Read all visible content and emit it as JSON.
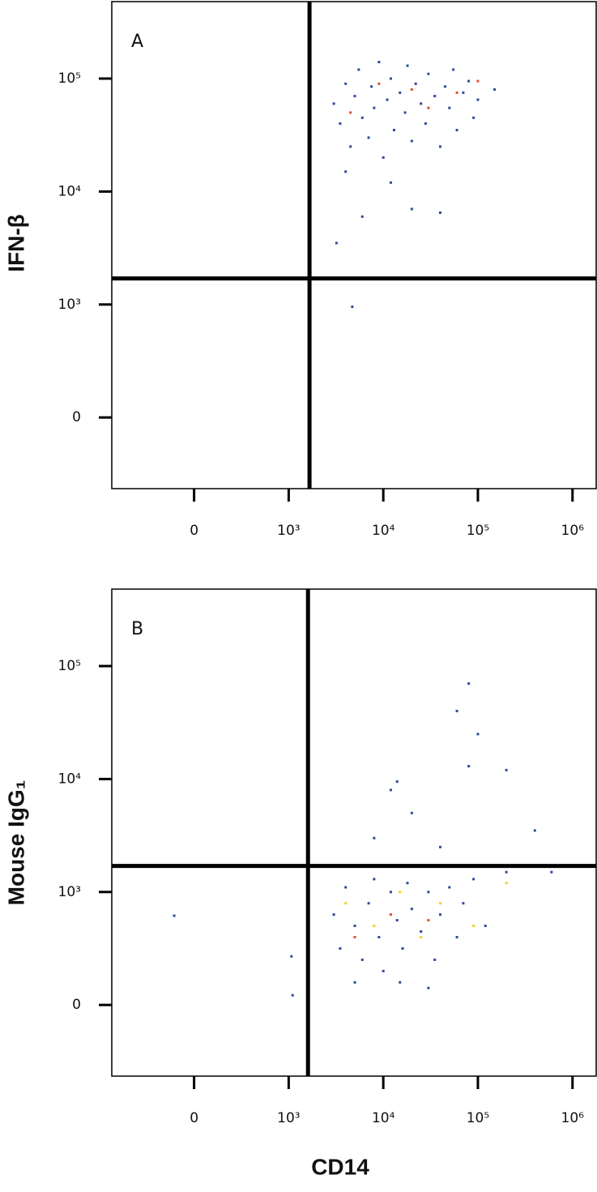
{
  "chart_data": [
    {
      "type": "scatter",
      "label": "A",
      "ylabel": "IFN-β",
      "xscale": "biexponential",
      "yscale": "biexponential",
      "xlim": [
        -870,
        1780000
      ],
      "ylim": [
        -630,
        480000
      ],
      "xticks": [
        0,
        {
          "value": 1000,
          "label": "10³"
        },
        {
          "value": 10000,
          "label": "10⁴"
        },
        {
          "value": 100000,
          "label": "10⁵"
        },
        {
          "value": 1000000,
          "label": "10⁶"
        }
      ],
      "yticks": [
        0,
        {
          "value": 1000,
          "label": "10³"
        },
        {
          "value": 10000,
          "label": "10⁴"
        },
        {
          "value": 100000,
          "label": "10⁵"
        }
      ],
      "gates": {
        "x": 1660,
        "y": 1700
      },
      "series": [
        {
          "color": "#2e4a9e",
          "x": [
            3000,
            3500,
            4000,
            4500,
            5000,
            5500,
            6000,
            7000,
            7500,
            8000,
            9000,
            10000,
            11000,
            12000,
            13000,
            15000,
            17000,
            18000,
            20000,
            22000,
            25000,
            28000,
            30000,
            35000,
            40000,
            45000,
            50000,
            55000,
            60000,
            70000,
            80000,
            90000,
            100000,
            150000,
            4000,
            6000,
            12000,
            20000,
            40000,
            3200,
            4700
          ],
          "y": [
            60000,
            40000,
            90000,
            25000,
            70000,
            120000,
            45000,
            30000,
            85000,
            55000,
            140000,
            20000,
            65000,
            100000,
            35000,
            75000,
            50000,
            130000,
            28000,
            90000,
            60000,
            40000,
            110000,
            70000,
            25000,
            85000,
            55000,
            120000,
            35000,
            75000,
            95000,
            45000,
            65000,
            80000,
            15000,
            6000,
            12000,
            7000,
            6500,
            3500,
            980
          ]
        },
        {
          "color": "#e0502a",
          "x": [
            9000,
            20000,
            30000,
            60000,
            100000,
            4500
          ],
          "y": [
            90000,
            80000,
            55000,
            75000,
            95000,
            50000
          ]
        }
      ]
    },
    {
      "type": "scatter",
      "label": "B",
      "ylabel": "Mouse IgG₁",
      "xlabel": "CD14",
      "xscale": "biexponential",
      "yscale": "biexponential",
      "xlim": [
        -870,
        1780000
      ],
      "ylim": [
        -630,
        480000
      ],
      "xticks": [
        0,
        {
          "value": 1000,
          "label": "10³"
        },
        {
          "value": 10000,
          "label": "10⁴"
        },
        {
          "value": 100000,
          "label": "10⁵"
        },
        {
          "value": 1000000,
          "label": "10⁶"
        }
      ],
      "yticks": [
        0,
        {
          "value": 1000,
          "label": "10³"
        },
        {
          "value": 10000,
          "label": "10⁴"
        },
        {
          "value": 100000,
          "label": "10⁵"
        }
      ],
      "gates": {
        "x": 1600,
        "y": 1700
      },
      "series": [
        {
          "color": "#2e4a9e",
          "x": [
            3000,
            3500,
            4000,
            5000,
            6000,
            7000,
            8000,
            9000,
            10000,
            12000,
            14000,
            16000,
            18000,
            20000,
            25000,
            30000,
            35000,
            40000,
            50000,
            60000,
            70000,
            90000,
            120000,
            200000,
            600000,
            5000,
            15000,
            30000,
            8000,
            12000,
            14000,
            20000,
            40000,
            60000,
            80000,
            80000,
            100000,
            200000,
            400000,
            -210,
            1070,
            1100
          ],
          "y": [
            800,
            500,
            1100,
            700,
            400,
            900,
            1300,
            600,
            300,
            1000,
            750,
            500,
            1200,
            850,
            650,
            1000,
            400,
            800,
            1100,
            600,
            900,
            1300,
            700,
            1500,
            1500,
            200,
            200,
            150,
            3000,
            8000,
            9500,
            5000,
            2500,
            40000,
            13000,
            70000,
            25000,
            12000,
            3500,
            790,
            430,
            86
          ]
        },
        {
          "color": "#f2d21e",
          "x": [
            4000,
            8000,
            15000,
            25000,
            40000,
            90000,
            200000
          ],
          "y": [
            900,
            700,
            1000,
            600,
            900,
            700,
            1200
          ]
        },
        {
          "color": "#e0502a",
          "x": [
            5000,
            12000,
            30000
          ],
          "y": [
            600,
            800,
            750
          ]
        }
      ]
    }
  ]
}
